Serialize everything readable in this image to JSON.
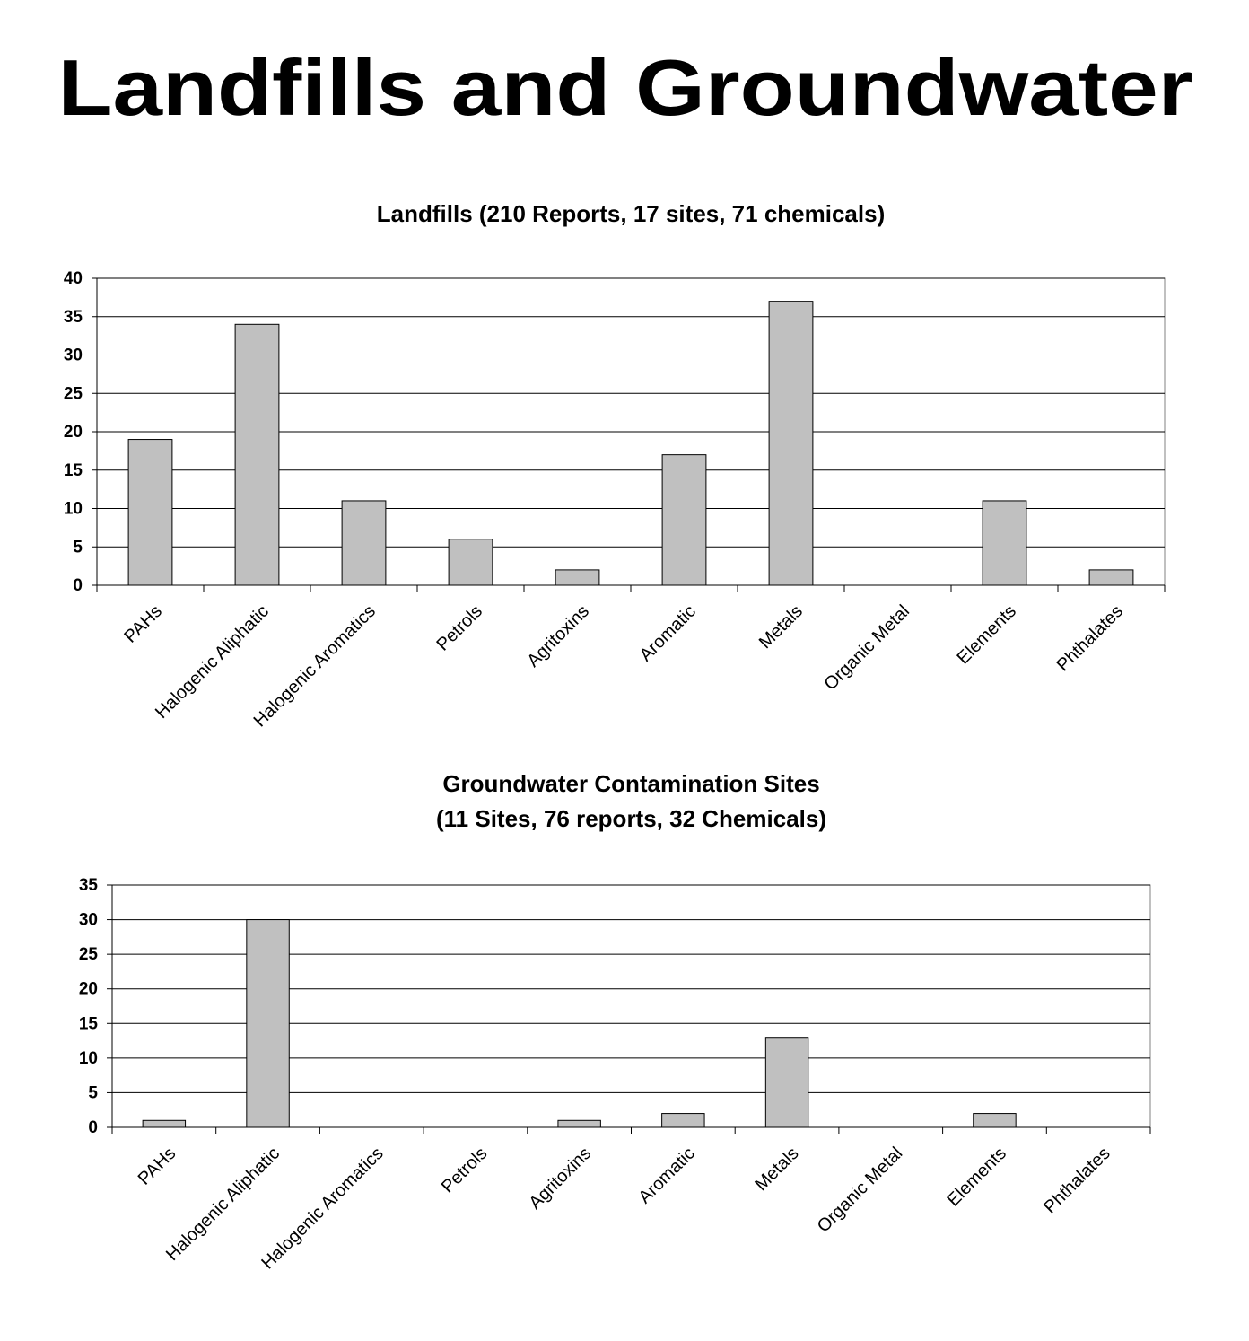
{
  "title": "Landfills and Groundwater",
  "chart_data": [
    {
      "type": "bar",
      "title": [
        "Landfills (210 Reports, 17 sites, 71 chemicals)"
      ],
      "categories": [
        "PAHs",
        "Halogenic Aliphatic",
        "Halogenic Aromatics",
        "Petrols",
        "Agritoxins",
        "Aromatic",
        "Metals",
        "Organic Metal",
        "Elements",
        "Phthalates"
      ],
      "values": [
        19,
        34,
        11,
        6,
        2,
        17,
        37,
        0,
        11,
        2
      ],
      "color": "#c0c0c0",
      "ylim": [
        0,
        40
      ],
      "yticks": [
        0,
        5,
        10,
        15,
        20,
        25,
        30,
        35,
        40
      ],
      "grid": true
    },
    {
      "type": "bar",
      "title": [
        "Groundwater Contamination Sites",
        "(11 Sites, 76 reports, 32 Chemicals)"
      ],
      "categories": [
        "PAHs",
        "Halogenic Aliphatic",
        "Halogenic Aromatics",
        "Petrols",
        "Agritoxins",
        "Aromatic",
        "Metals",
        "Organic Metal",
        "Elements",
        "Phthalates"
      ],
      "values": [
        1,
        30,
        0,
        0,
        1,
        2,
        13,
        0,
        2,
        0
      ],
      "color": "#c0c0c0",
      "ylim": [
        0,
        35
      ],
      "yticks": [
        0,
        5,
        10,
        15,
        20,
        25,
        30,
        35
      ],
      "grid": true
    }
  ]
}
